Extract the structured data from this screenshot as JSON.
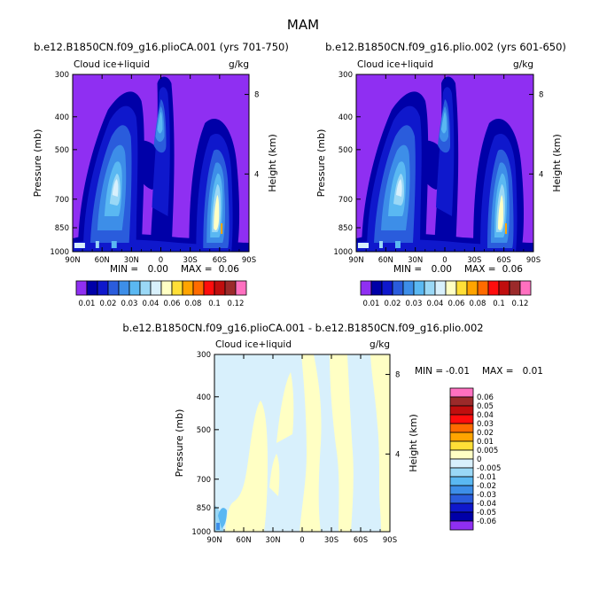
{
  "figure": {
    "season": "MAM"
  },
  "palettes": {
    "abs": [
      "#8f2ff2",
      "#0000a8",
      "#0f18cc",
      "#2a5cdc",
      "#3d8ee8",
      "#5ab8f2",
      "#9ad8f6",
      "#d8f0fc",
      "#ffffc4",
      "#ffdf37",
      "#ffa400",
      "#ff6b00",
      "#ff0d0d",
      "#c00e0e",
      "#9b2a2a",
      "#ff70c0"
    ],
    "diff": [
      "#8f2ff2",
      "#0000a8",
      "#0f18cc",
      "#2a5cdc",
      "#3d8ee8",
      "#5ab8f2",
      "#9ad8f6",
      "#d8f0fc",
      "#ffffc4",
      "#ffdf37",
      "#ffa400",
      "#ff6b00",
      "#ff0d0d",
      "#c00e0e",
      "#9b2a2a",
      "#ff70c0"
    ]
  },
  "chart_data": [
    {
      "type": "heatmap",
      "title": "b.e12.B1850CN.f09_g16.plioCA.001 (yrs 701-750)",
      "left_label": "Cloud ice+liquid",
      "units_label": "g/kg",
      "xlabel": "",
      "ylabel": "Pressure (mb)",
      "y2label": "Height (km)",
      "x_ticks": [
        "90N",
        "60N",
        "30N",
        "0",
        "30S",
        "60S",
        "90S"
      ],
      "y_ticks": [
        "300",
        "400",
        "500",
        "700",
        "850",
        "1000"
      ],
      "y2_ticks": [
        "8",
        "4"
      ],
      "stats": {
        "min_label": "MIN =",
        "min": "0.00",
        "max_label": "MAX =",
        "max": "0.06"
      },
      "colorbar": {
        "orientation": "horizontal",
        "labels": [
          "0.01",
          "0.02",
          "0.03",
          "0.04",
          "0.06",
          "0.08",
          "0.1",
          "0.12"
        ]
      }
    },
    {
      "type": "heatmap",
      "title": "b.e12.B1850CN.f09_g16.plio.002 (yrs 601-650)",
      "left_label": "Cloud ice+liquid",
      "units_label": "g/kg",
      "xlabel": "",
      "ylabel": "Pressure (mb)",
      "y2label": "Height (km)",
      "x_ticks": [
        "90N",
        "60N",
        "30N",
        "0",
        "30S",
        "60S",
        "90S"
      ],
      "y_ticks": [
        "300",
        "400",
        "500",
        "700",
        "850",
        "1000"
      ],
      "y2_ticks": [
        "8",
        "4"
      ],
      "stats": {
        "min_label": "MIN =",
        "min": "0.00",
        "max_label": "MAX =",
        "max": "0.06"
      },
      "colorbar": {
        "orientation": "horizontal",
        "labels": [
          "0.01",
          "0.02",
          "0.03",
          "0.04",
          "0.06",
          "0.08",
          "0.1",
          "0.12"
        ]
      }
    },
    {
      "type": "heatmap",
      "title": "b.e12.B1850CN.f09_g16.plioCA.001 - b.e12.B1850CN.f09_g16.plio.002",
      "left_label": "Cloud ice+liquid",
      "units_label": "g/kg",
      "xlabel": "",
      "ylabel": "Pressure (mb)",
      "y2label": "Height (km)",
      "x_ticks": [
        "90N",
        "60N",
        "30N",
        "0",
        "30S",
        "60S",
        "90S"
      ],
      "y_ticks": [
        "300",
        "400",
        "500",
        "700",
        "850",
        "1000"
      ],
      "y2_ticks": [
        "8",
        "4"
      ],
      "stats": {
        "min_label": "MIN =",
        "min": "-0.01",
        "max_label": "MAX =",
        "max": "0.01"
      },
      "colorbar": {
        "orientation": "vertical",
        "labels": [
          "0.06",
          "0.05",
          "0.04",
          "0.03",
          "0.02",
          "0.01",
          "0.005",
          "0",
          "-0.005",
          "-0.01",
          "-0.02",
          "-0.03",
          "-0.04",
          "-0.05",
          "-0.06"
        ]
      }
    }
  ]
}
